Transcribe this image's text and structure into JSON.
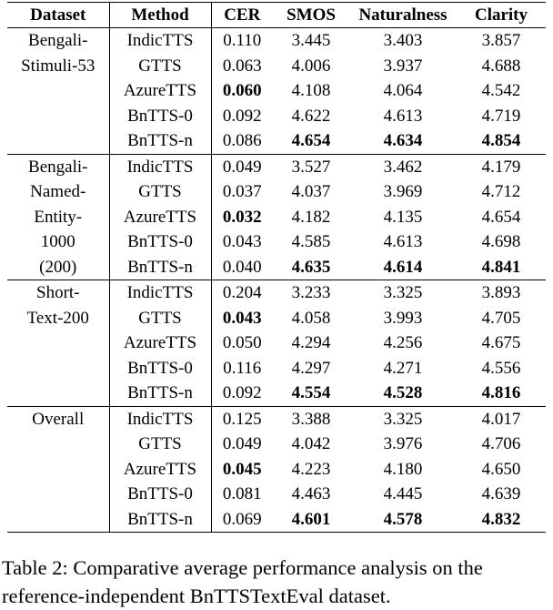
{
  "table": {
    "header": [
      "Dataset",
      "Method",
      "CER",
      "SMOS",
      "Naturalness",
      "Clarity"
    ],
    "groups": [
      {
        "dataset": [
          "Bengali-",
          "Stimuli-53"
        ],
        "rows": [
          {
            "cells": [
              "IndicTTS",
              "0.110",
              "3.445",
              "3.403",
              "3.857"
            ],
            "bold": []
          },
          {
            "cells": [
              "GTTS",
              "0.063",
              "4.006",
              "3.937",
              "4.688"
            ],
            "bold": []
          },
          {
            "cells": [
              "AzureTTS",
              "0.060",
              "4.108",
              "4.064",
              "4.542"
            ],
            "bold": [
              1
            ]
          },
          {
            "cells": [
              "BnTTS-0",
              "0.092",
              "4.622",
              "4.613",
              "4.719"
            ],
            "bold": []
          },
          {
            "cells": [
              "BnTTS-n",
              "0.086",
              "4.654",
              "4.634",
              "4.854"
            ],
            "bold": [
              2,
              3,
              4
            ]
          }
        ]
      },
      {
        "dataset": [
          "Bengali-",
          "Named-",
          "Entity-",
          "1000",
          "(200)"
        ],
        "rows": [
          {
            "cells": [
              "IndicTTS",
              "0.049",
              "3.527",
              "3.462",
              "4.179"
            ],
            "bold": []
          },
          {
            "cells": [
              "GTTS",
              "0.037",
              "4.037",
              "3.969",
              "4.712"
            ],
            "bold": []
          },
          {
            "cells": [
              "AzureTTS",
              "0.032",
              "4.182",
              "4.135",
              "4.654"
            ],
            "bold": [
              1
            ]
          },
          {
            "cells": [
              "BnTTS-0",
              "0.043",
              "4.585",
              "4.613",
              "4.698"
            ],
            "bold": []
          },
          {
            "cells": [
              "BnTTS-n",
              "0.040",
              "4.635",
              "4.614",
              "4.841"
            ],
            "bold": [
              2,
              3,
              4
            ]
          }
        ]
      },
      {
        "dataset": [
          "Short-",
          "Text-200"
        ],
        "rows": [
          {
            "cells": [
              "IndicTTS",
              "0.204",
              "3.233",
              "3.325",
              "3.893"
            ],
            "bold": []
          },
          {
            "cells": [
              "GTTS",
              "0.043",
              "4.058",
              "3.993",
              "4.705"
            ],
            "bold": [
              1
            ]
          },
          {
            "cells": [
              "AzureTTS",
              "0.050",
              "4.294",
              "4.256",
              "4.675"
            ],
            "bold": []
          },
          {
            "cells": [
              "BnTTS-0",
              "0.116",
              "4.297",
              "4.271",
              "4.556"
            ],
            "bold": []
          },
          {
            "cells": [
              "BnTTS-n",
              "0.092",
              "4.554",
              "4.528",
              "4.816"
            ],
            "bold": [
              2,
              3,
              4
            ]
          }
        ]
      },
      {
        "dataset": [
          "Overall"
        ],
        "rows": [
          {
            "cells": [
              "IndicTTS",
              "0.125",
              "3.388",
              "3.325",
              "4.017"
            ],
            "bold": []
          },
          {
            "cells": [
              "GTTS",
              "0.049",
              "4.042",
              "3.976",
              "4.706"
            ],
            "bold": []
          },
          {
            "cells": [
              "AzureTTS",
              "0.045",
              "4.223",
              "4.180",
              "4.650"
            ],
            "bold": [
              1
            ]
          },
          {
            "cells": [
              "BnTTS-0",
              "0.081",
              "4.463",
              "4.445",
              "4.639"
            ],
            "bold": []
          },
          {
            "cells": [
              "BnTTS-n",
              "0.069",
              "4.601",
              "4.578",
              "4.832"
            ],
            "bold": [
              2,
              3,
              4
            ]
          }
        ]
      }
    ]
  },
  "caption": "Table 2: Comparative average performance analysis on the reference-independent BnTTSTextEval dataset."
}
